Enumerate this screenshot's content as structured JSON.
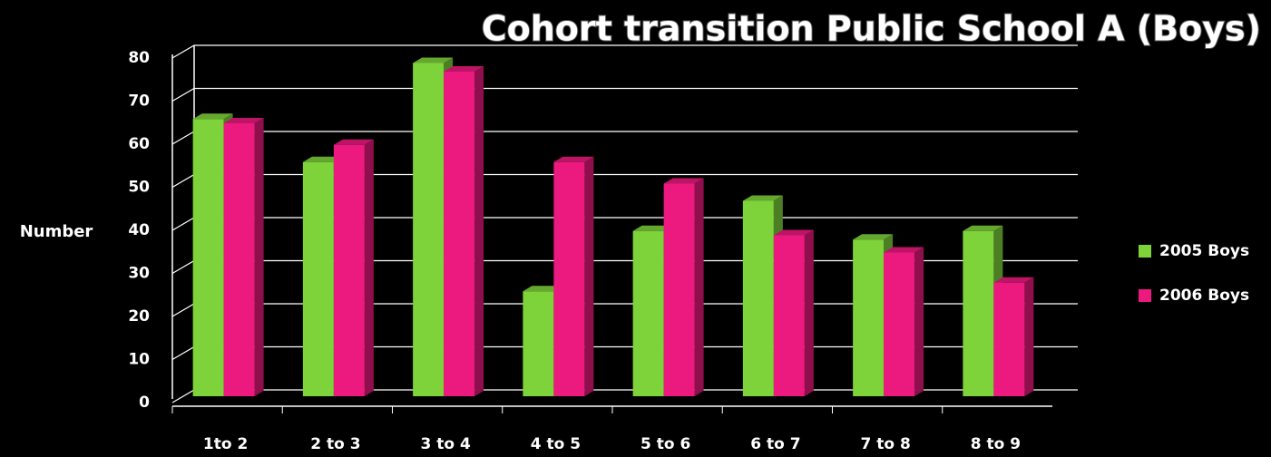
{
  "chart_data": {
    "type": "bar3d",
    "title": "Cohort transition Public School A (Boys)",
    "y_label": "Number",
    "categories": [
      "1to 2",
      "2 to 3",
      "3 to 4",
      "4 to 5",
      "5 to 6",
      "6 to 7",
      "7 to 8",
      "8 to 9"
    ],
    "series": [
      {
        "name": "2005 Boys",
        "color": "#7ed23a",
        "values": [
          65,
          55,
          78,
          25,
          39,
          46,
          37,
          39
        ]
      },
      {
        "name": "2006 Boys",
        "color": "#ec197f",
        "values": [
          64,
          59,
          76,
          55,
          50,
          38,
          34,
          27
        ]
      }
    ],
    "ylim": [
      0,
      80
    ],
    "yticks": [
      0,
      10,
      20,
      30,
      40,
      50,
      60,
      70,
      80
    ],
    "grid": true,
    "legend": "right"
  }
}
